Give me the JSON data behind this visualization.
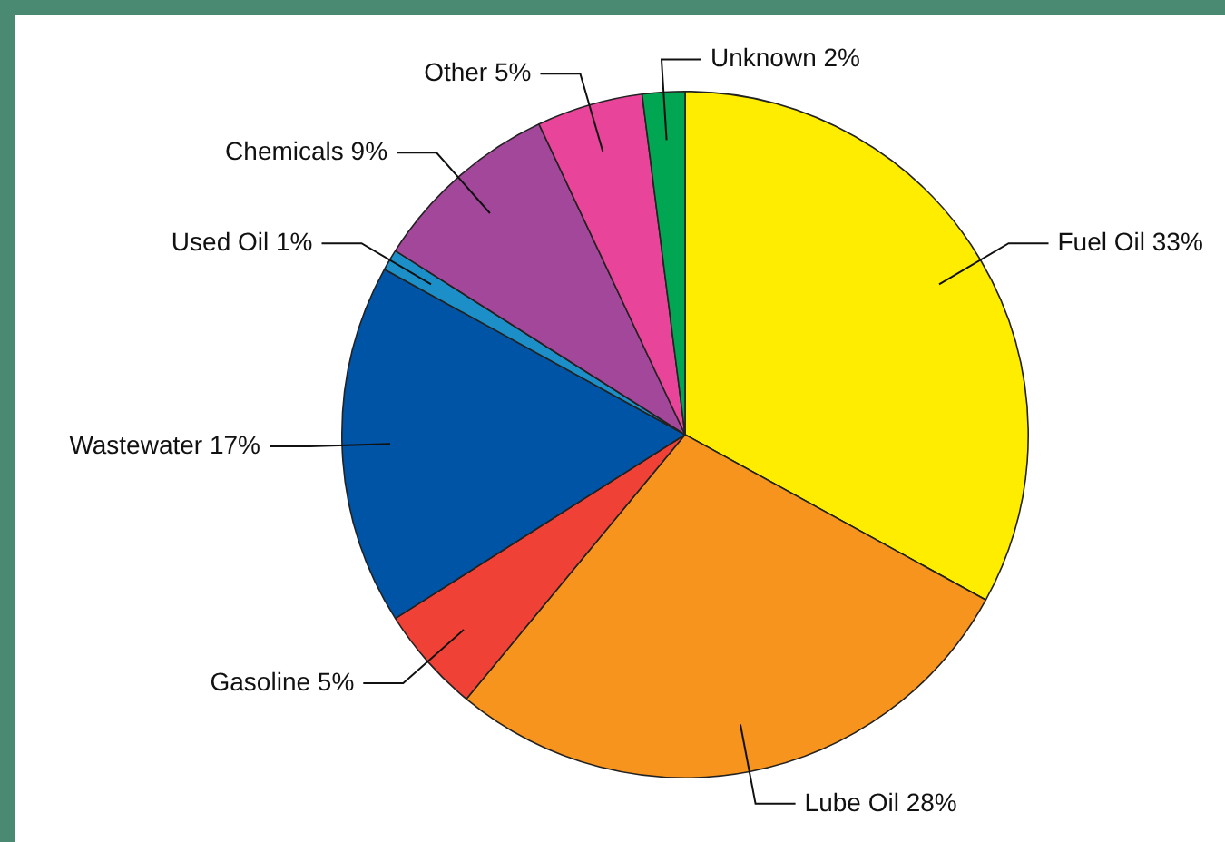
{
  "chart_data": {
    "type": "pie",
    "categories": [
      "Fuel Oil",
      "Lube Oil",
      "Gasoline",
      "Wastewater",
      "Used Oil",
      "Chemicals",
      "Other",
      "Unknown"
    ],
    "values": [
      33,
      28,
      5,
      17,
      1,
      9,
      5,
      2
    ],
    "value_labels": [
      "33%",
      "28%",
      "5%",
      "17%",
      "1%",
      "9%",
      "5%",
      "2%"
    ],
    "colors": [
      "#ffed00",
      "#f7941d",
      "#ef4136",
      "#0054a6",
      "#1c8fc9",
      "#a3479b",
      "#e8459a",
      "#00a651"
    ],
    "legend": false
  }
}
